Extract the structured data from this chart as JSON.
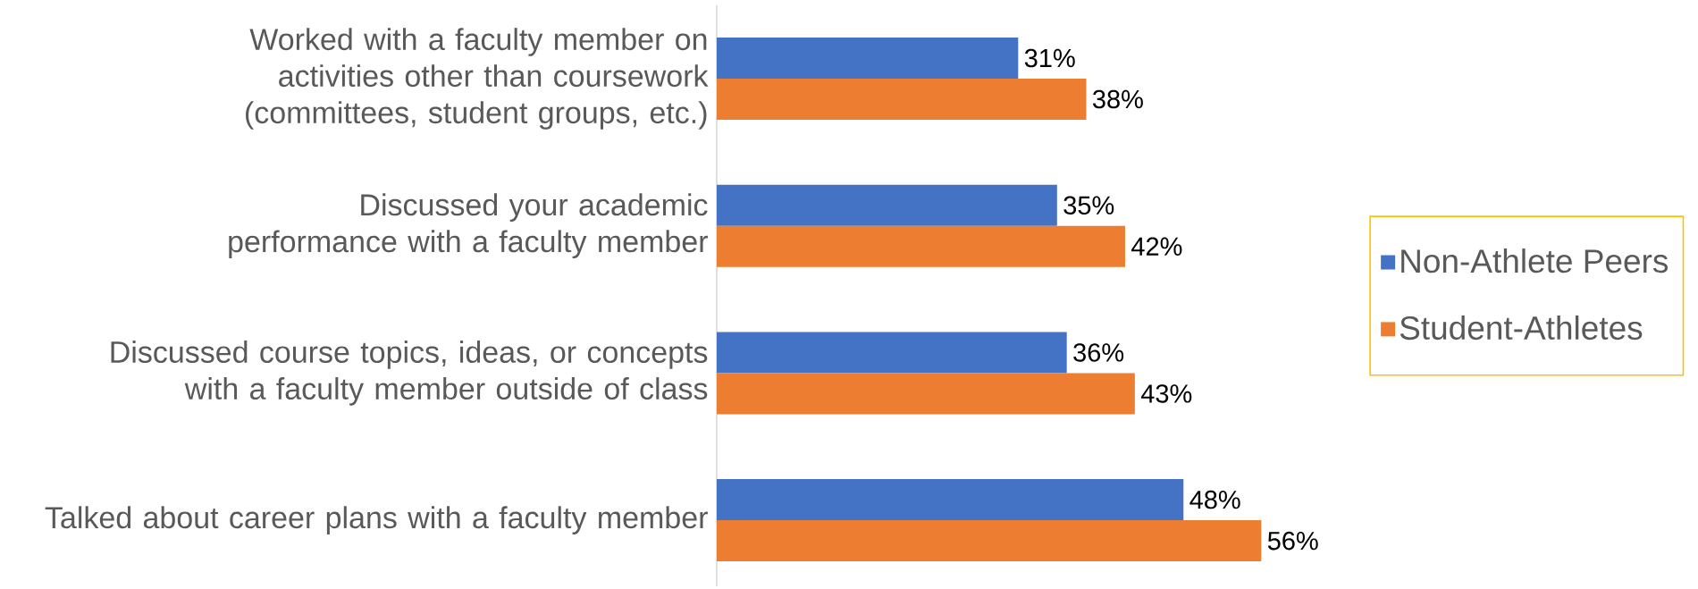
{
  "chart_data": {
    "type": "bar",
    "orientation": "horizontal",
    "tick_labels": "y",
    "legend": "right",
    "categories": [
      "Worked with a faculty member on activities other than coursework (committees, student groups, etc.)",
      "Discussed your academic performance with a faculty member",
      "Discussed course topics, ideas, or concepts with a faculty member outside of class",
      "Talked about career plans with a faculty member"
    ],
    "series": [
      {
        "name": "Non-Athlete Peers",
        "color": "#4472c4",
        "values": [
          31,
          35,
          36,
          48
        ],
        "value_labels": [
          "31%",
          "35%",
          "36%",
          "48%"
        ]
      },
      {
        "name": "Student-Athletes",
        "color": "#ed7d31",
        "values": [
          38,
          42,
          43,
          56
        ],
        "value_labels": [
          "38%",
          "42%",
          "43%",
          "56%"
        ]
      }
    ]
  }
}
